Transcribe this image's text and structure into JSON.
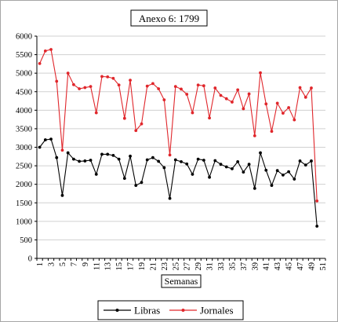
{
  "chart_data": {
    "type": "line",
    "title": "Anexo 6: 1799",
    "xlabel": "Semanas",
    "ylabel": "",
    "ylim": [
      0,
      6000
    ],
    "ytick_step": 500,
    "x_categories": [
      "1",
      "2",
      "3",
      "4",
      "5",
      "6",
      "7",
      "8",
      "9",
      "10",
      "11",
      "12",
      "13",
      "14",
      "15",
      "16",
      "17",
      "18",
      "19",
      "20",
      "21",
      "22",
      "23",
      "24",
      "25",
      "26",
      "27",
      "28",
      "29",
      "30",
      "31",
      "32",
      "33",
      "34",
      "35",
      "36",
      "37",
      "38",
      "39",
      "40",
      "41",
      "42",
      "43",
      "44",
      "45",
      "46",
      "47",
      "48",
      "49",
      "50",
      "51"
    ],
    "x_tick_labels_shown": [
      "1",
      "3",
      "5",
      "7",
      "9",
      "11",
      "13",
      "15",
      "17",
      "19",
      "21",
      "23",
      "25",
      "27",
      "29",
      "31",
      "33",
      "35",
      "37",
      "39",
      "41",
      "43",
      "45",
      "47",
      "49",
      "51"
    ],
    "grid": "horizontal",
    "legend_position": "bottom",
    "series": [
      {
        "name": "Libras",
        "color": "#000000",
        "values": [
          3000,
          3200,
          3220,
          2720,
          1700,
          2850,
          2680,
          2620,
          2630,
          2650,
          2270,
          2810,
          2810,
          2780,
          2680,
          2160,
          2760,
          1970,
          2050,
          2660,
          2720,
          2620,
          2450,
          1620,
          2660,
          2610,
          2550,
          2270,
          2680,
          2650,
          2190,
          2640,
          2540,
          2470,
          2420,
          2610,
          2330,
          2540,
          1890,
          2850,
          2380,
          1970,
          2370,
          2250,
          2340,
          2140,
          2630,
          2520,
          2630,
          870,
          null
        ]
      },
      {
        "name": "Jornales",
        "color": "#e0262b",
        "values": [
          5260,
          5600,
          5640,
          4780,
          2920,
          5000,
          4690,
          4580,
          4610,
          4640,
          3930,
          4910,
          4900,
          4860,
          4680,
          3780,
          4810,
          3450,
          3630,
          4650,
          4720,
          4580,
          4280,
          2790,
          4640,
          4570,
          4430,
          3930,
          4680,
          4660,
          3790,
          4600,
          4400,
          4310,
          4220,
          4550,
          4040,
          4440,
          3310,
          5010,
          4170,
          3430,
          4190,
          3920,
          4070,
          3740,
          4610,
          4350,
          4600,
          1550,
          null
        ]
      }
    ]
  }
}
